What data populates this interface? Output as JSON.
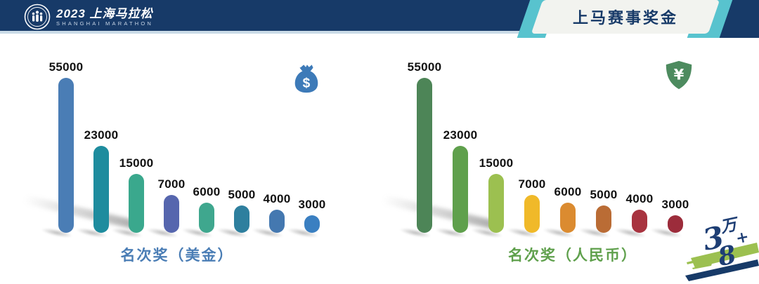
{
  "header": {
    "bg_color": "#173A68",
    "divider_color": "#CADBE7",
    "logo": {
      "title": "2023 上海马拉松",
      "subtitle": "SHANGHAI MARATHON",
      "emblem": "circular seal with runner figures"
    },
    "banner": {
      "title": "上马赛事奖金",
      "panel_color": "#F2F3EF",
      "accent_color": "#58C3CE",
      "title_color": "#173A68"
    }
  },
  "chart_data": [
    {
      "type": "bar",
      "title": "名次奖（美金）",
      "icon": "money-bag-dollar",
      "icon_color": "#3D7AB8",
      "accent_color": "#4A7DB5",
      "values": [
        55000,
        23000,
        15000,
        7000,
        6000,
        5000,
        4000,
        3000
      ],
      "value_labels": [
        "55000",
        "23000",
        "15000",
        "7000",
        "6000",
        "5000",
        "4000",
        "3000"
      ],
      "bar_colors": [
        "#4A7DB5",
        "#1E8C9E",
        "#3AA88D",
        "#5666AE",
        "#3FA78E",
        "#2E7F9E",
        "#4478B0",
        "#3A7FC1"
      ],
      "grid": false,
      "legend_position": "none",
      "value_labels_shown": true,
      "categories_shown": false
    },
    {
      "type": "bar",
      "title": "名次奖（人民币）",
      "icon": "shield-yuan",
      "icon_color": "#4D8B5F",
      "accent_color": "#5FA04C",
      "values": [
        55000,
        23000,
        15000,
        7000,
        6000,
        5000,
        4000,
        3000
      ],
      "value_labels": [
        "55000",
        "23000",
        "15000",
        "7000",
        "6000",
        "5000",
        "4000",
        "3000"
      ],
      "bar_colors": [
        "#4D8557",
        "#5FA04C",
        "#9CC050",
        "#F0B929",
        "#DB8B30",
        "#BA6C35",
        "#A8333F",
        "#9C2C3B"
      ],
      "grid": false,
      "legend_position": "none",
      "value_labels_shown": true,
      "categories_shown": false
    }
  ],
  "footer_logo": {
    "text": "3万8+",
    "text_color": "#1E3E74",
    "brush_green": "#9CC050",
    "brush_navy": "#173A68"
  }
}
